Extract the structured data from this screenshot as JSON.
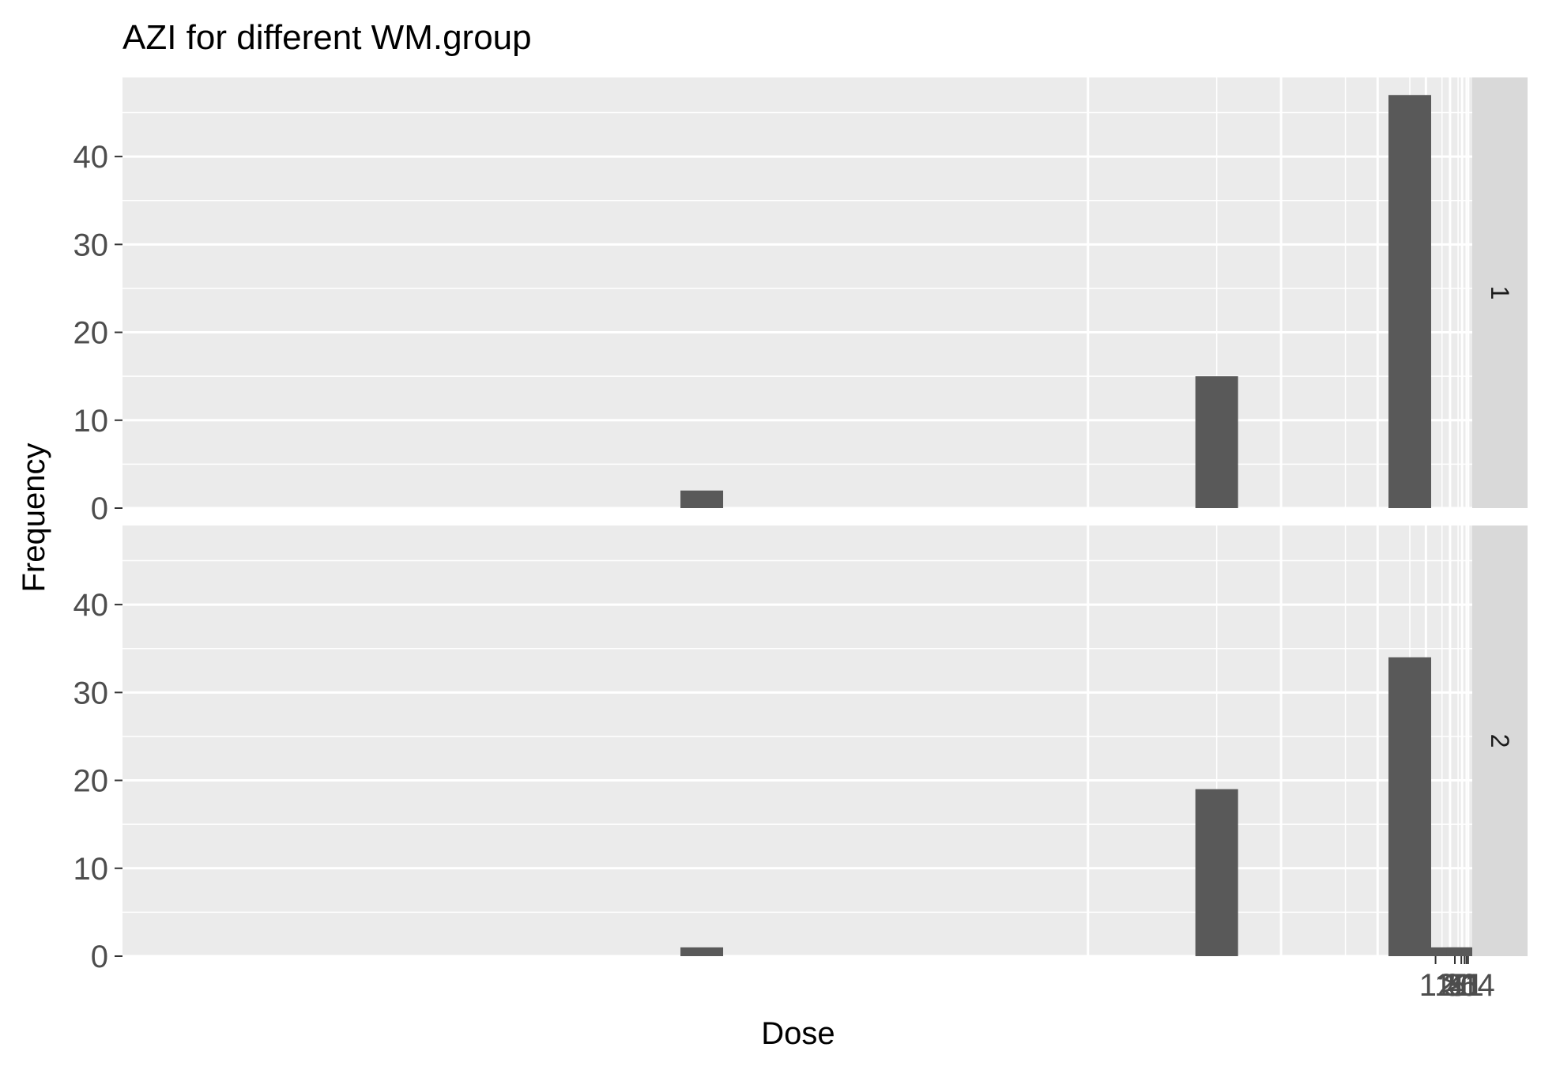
{
  "chart_data": {
    "type": "bar",
    "title": "AZI for different WM.group",
    "xlabel": "Dose",
    "ylabel": "Frequency",
    "x_tick_labels": [
      "11",
      "21",
      "31",
      "41",
      "51",
      ">64"
    ],
    "y_ticks": [
      0,
      10,
      20,
      30,
      40
    ],
    "ylim": [
      0,
      49
    ],
    "grid": true,
    "facets": [
      {
        "label": "1",
        "bars": [
          {
            "dose": 0.5,
            "frequency": 2
          },
          {
            "dose": 1.5,
            "frequency": 15
          },
          {
            "dose": 6,
            "frequency": 47
          }
        ]
      },
      {
        "label": "2",
        "bars": [
          {
            "dose": 0.5,
            "frequency": 1
          },
          {
            "dose": 1.5,
            "frequency": 19
          },
          {
            "dose": 6,
            "frequency": 34
          },
          {
            "dose": 16,
            "frequency": 1
          },
          {
            "dose": 64,
            "frequency": 1
          }
        ]
      }
    ],
    "colors": {
      "panel_background": "#ebebeb",
      "grid_line": "#ffffff",
      "bar_fill": "#595959",
      "strip_background": "#d9d9d9",
      "tick_text": "#4d4d4d"
    }
  }
}
